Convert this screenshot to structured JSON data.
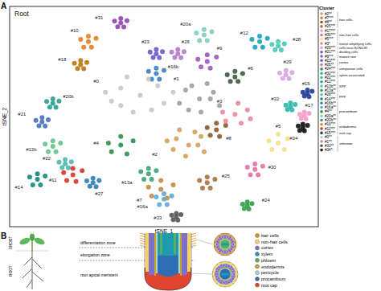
{
  "panel_labels": [
    "A",
    "B"
  ],
  "chart_data": {
    "type": "scatter",
    "title": "Root",
    "x_label": "tSNE_1",
    "y_label": "tSNE_2",
    "xlim": [
      0,
      100
    ],
    "ylim": [
      0,
      100
    ],
    "xticks": [],
    "yticks": [],
    "tick_labels": false,
    "legend": "right",
    "legend_title": "Cluster",
    "marker": "circle",
    "series": [
      {
        "name": "#2**",
        "group": "hair cells",
        "color": "#d4a15a",
        "x": [
          58,
          54,
          62,
          53,
          63,
          57,
          60,
          55,
          61,
          51
        ],
        "y": [
          37,
          40,
          41,
          35,
          34,
          32,
          43,
          44,
          37,
          39
        ]
      },
      {
        "name": "#7***",
        "group": "hair cells",
        "color": "#c48a3c",
        "x": [
          49,
          53,
          45,
          51,
          46,
          49
        ],
        "y": [
          17,
          19,
          18,
          13,
          14,
          21
        ]
      },
      {
        "name": "#8**",
        "group": "hair cells",
        "color": "#8b5a2b",
        "x": [
          67,
          70,
          64,
          68,
          65,
          67
        ],
        "y": [
          44,
          46,
          45,
          41,
          41.5,
          47
        ]
      },
      {
        "name": "#25***",
        "group": "hair cells",
        "color": "#a8733a",
        "x": [
          64,
          66.5,
          61.5,
          65,
          62.5,
          64
        ],
        "y": [
          20,
          21.5,
          21,
          17.5,
          17.5,
          22.5
        ]
      },
      {
        "name": "#17***",
        "group": "non-hair cells",
        "color": "#f29ec4",
        "x": [
          95.5,
          97,
          94,
          96,
          94.5,
          95.5
        ],
        "y": [
          50.5,
          51.5,
          51,
          49,
          49.2,
          52
        ]
      },
      {
        "name": "#30***",
        "group": "non-hair cells",
        "color": "#e76fa3",
        "x": [
          79.5,
          82,
          77,
          80.5,
          78,
          79.5
        ],
        "y": [
          26,
          27.5,
          27,
          23.5,
          23.5,
          28.5
        ]
      },
      {
        "name": "#5***",
        "group": "non-hair cells",
        "color": "#f7e08a",
        "x": [
          87,
          90,
          84,
          89,
          85,
          87
        ],
        "y": [
          38,
          40,
          39,
          35,
          35,
          42
        ]
      },
      {
        "name": "#3*",
        "group": "transit amplifying cells",
        "color": "#e8899a",
        "x": [
          73,
          77,
          69,
          75,
          70,
          74,
          78
        ],
        "y": [
          51,
          53,
          52,
          47,
          48,
          56,
          49
        ]
      },
      {
        "name": "#29***",
        "group": "cells near SCN/LRI",
        "color": "#d7a3e0",
        "x": [
          89.5,
          91.5,
          87.5,
          90.5,
          88.5,
          89.5
        ],
        "y": [
          69,
          70,
          69.8,
          67.2,
          67.3,
          71
        ]
      },
      {
        "name": "#21***",
        "group": "dividing cells",
        "color": "#4a6fc0",
        "x": [
          10.5,
          12.5,
          8.5,
          11.5,
          9.5,
          10.5
        ],
        "y": [
          47.5,
          48.5,
          48.3,
          45.7,
          45.8,
          49.5
        ]
      },
      {
        "name": "#9***",
        "group": "mature root",
        "color": "#9b59b6",
        "x": [
          64,
          67,
          61,
          65,
          62,
          64
        ],
        "y": [
          75,
          77,
          76,
          72,
          72.5,
          78
        ]
      },
      {
        "name": "#23***",
        "group": "cortex",
        "color": "#6a5acd",
        "x": [
          47.5,
          49.5,
          45.5,
          48.5,
          46.5,
          47.5
        ],
        "y": [
          78.5,
          79.5,
          79.3,
          76.7,
          76.8,
          80.5
        ]
      },
      {
        "name": "#26**",
        "group": "cortex",
        "color": "#b07cc6",
        "x": [
          54.5,
          56.5,
          52.5,
          55.5,
          53.5,
          54.5
        ],
        "y": [
          78.5,
          79.5,
          79.3,
          76.7,
          76.8,
          80.5
        ]
      },
      {
        "name": "#24***",
        "group": "companion cells",
        "color": "#2e9e44",
        "x": [
          77,
          78.5,
          75.5,
          77.5,
          76,
          77
        ],
        "y": [
          9.5,
          10.5,
          10.2,
          8,
          8.2,
          11.2
        ]
      },
      {
        "name": "#32***",
        "group": "xylem associated",
        "color": "#29b8a8",
        "x": [
          91,
          92.5,
          89.5,
          91.5,
          90,
          91
        ],
        "y": [
          54.5,
          55.5,
          55.2,
          53,
          53.2,
          56.2
        ]
      },
      {
        "name": "#22***",
        "group": "xylem associated",
        "color": "#4db6ac",
        "x": [
          18,
          20,
          16,
          19,
          17,
          18
        ],
        "y": [
          28.5,
          29.5,
          29.3,
          26.7,
          26.8,
          30.5
        ]
      },
      {
        "name": "#12***",
        "group": "XPP",
        "color": "#1aa3b8",
        "x": [
          81,
          83.5,
          78.5,
          82,
          79.5,
          81
        ],
        "y": [
          84,
          85.5,
          85,
          81.5,
          81.5,
          86.5
        ]
      },
      {
        "name": "#13b**",
        "group": "XPP",
        "color": "#5fc48a",
        "x": [
          14,
          16.5,
          11.5,
          15,
          12.5,
          14
        ],
        "y": [
          36.5,
          38,
          37.5,
          34,
          34,
          39
        ]
      },
      {
        "name": "#13a**",
        "group": "XPP",
        "color": "#3aa372",
        "x": [
          45,
          47.5,
          42.5,
          46,
          43.5,
          45
        ],
        "y": [
          24,
          25.5,
          25,
          21.5,
          21.5,
          26.5
        ]
      },
      {
        "name": "#28***",
        "group": "PPP",
        "color": "#48c9b0",
        "x": [
          87,
          89,
          85,
          88,
          86,
          87
        ],
        "y": [
          82,
          83,
          82.8,
          80.2,
          80.3,
          84
        ]
      },
      {
        "name": "#14***",
        "group": "PPP",
        "color": "#0f8a7a",
        "x": [
          9,
          11.5,
          6.5,
          10,
          7.5,
          9
        ],
        "y": [
          21.5,
          23,
          22.5,
          19,
          19,
          24
        ]
      },
      {
        "name": "#16b**",
        "group": "procambium",
        "color": "#3f7fbf",
        "x": [
          47.5,
          50,
          45,
          48.5,
          46,
          47.5
        ],
        "y": [
          69.5,
          71,
          70.5,
          67,
          67,
          72
        ]
      },
      {
        "name": "#16a**",
        "group": "procambium",
        "color": "#5aa9dd",
        "x": [
          50,
          52.5,
          47.5,
          51,
          48.5,
          50
        ],
        "y": [
          12.5,
          14,
          13.5,
          10,
          10,
          15
        ]
      },
      {
        "name": "#4**",
        "group": "procambium",
        "color": "#2f8f4e",
        "x": [
          36,
          40,
          32,
          38,
          33,
          36
        ],
        "y": [
          37,
          39,
          38,
          33,
          34,
          41
        ]
      },
      {
        "name": "#20a**",
        "group": "procambium",
        "color": "#7fcdbb",
        "x": [
          63,
          65.5,
          60.5,
          64,
          61.5,
          63
        ],
        "y": [
          87,
          88.5,
          88,
          84.5,
          84.5,
          89.5
        ]
      },
      {
        "name": "#20b**",
        "group": "procambium",
        "color": "#2a9d8f",
        "x": [
          14,
          16,
          12,
          15,
          13,
          14
        ],
        "y": [
          56,
          57,
          56.8,
          54.2,
          54.3,
          58
        ]
      },
      {
        "name": "#10***",
        "group": "endodermis",
        "color": "#e67e22",
        "x": [
          25.5,
          28,
          23,
          26.5,
          24,
          25.5
        ],
        "y": [
          84,
          85.5,
          85,
          81.5,
          81.5,
          86.5
        ]
      },
      {
        "name": "#11***",
        "group": "endodermis",
        "color": "#d9342b",
        "x": [
          20.5,
          23.5,
          17.5,
          21.5,
          18.5,
          20.5
        ],
        "y": [
          23.5,
          25.5,
          24.5,
          20.5,
          21,
          26.5
        ]
      },
      {
        "name": "#15***",
        "group": "root cap",
        "color": "#1f3a93",
        "x": [
          96.5,
          98,
          95,
          97,
          95.5,
          96.5
        ],
        "y": [
          60.5,
          61.5,
          61,
          59,
          59.3,
          62
        ]
      },
      {
        "name": "#0**",
        "group": "unknown",
        "color": "#c8c8c8",
        "x": [
          42.3,
          36,
          48,
          33,
          50,
          40,
          45,
          38,
          53,
          31,
          46,
          36
        ],
        "y": [
          59.7,
          63,
          64,
          57,
          56,
          52,
          67,
          68,
          61,
          61,
          53,
          55
        ]
      },
      {
        "name": "#1**",
        "group": "unknown",
        "color": "#9e9e9e",
        "x": [
          61.5,
          57,
          66,
          55,
          68,
          62,
          59,
          64,
          58,
          65
        ],
        "y": [
          58,
          62,
          61,
          56,
          55,
          52,
          64,
          65,
          53,
          58
        ]
      },
      {
        "name": "#33**",
        "group": "unknown",
        "color": "#555555",
        "x": [
          54,
          55.5,
          52.5,
          54.5,
          53,
          54
        ],
        "y": [
          4.5,
          5.5,
          5.2,
          3,
          3.2,
          6
        ]
      },
      {
        "name": "#34*",
        "group": "unknown",
        "color": "#111111",
        "x": [
          95,
          96.5,
          93.5,
          95.5,
          94,
          95
        ],
        "y": [
          45,
          46,
          45.7,
          43.5,
          43.7,
          46.5
        ]
      },
      {
        "color": "#3d5a40",
        "x": [
          73,
          75.5,
          70.5,
          74,
          71.5,
          73
        ],
        "y": [
          68,
          69.5,
          69,
          66,
          66,
          70.5
        ]
      },
      {
        "color": "#b9770e",
        "x": [
          23,
          25,
          21,
          24,
          22,
          23
        ],
        "y": [
          73.5,
          74.5,
          74.2,
          71.7,
          71.8,
          75.5
        ]
      },
      {
        "color": "#2c7fb8",
        "x": [
          27,
          29,
          25,
          28,
          26,
          27
        ],
        "y": [
          20,
          21,
          20.8,
          18.2,
          18.3,
          22
        ]
      },
      {
        "color": "#8e44ad",
        "x": [
          36,
          38,
          34,
          37,
          35,
          36
        ],
        "y": [
          92.5,
          93.5,
          93.3,
          90.7,
          90.8,
          94.5
        ]
      }
    ],
    "annotations": [
      {
        "text": "#0",
        "x": 28,
        "y": 66
      },
      {
        "text": "#1",
        "x": 54,
        "y": 67
      },
      {
        "text": "#2",
        "x": 47,
        "y": 33
      },
      {
        "text": "#3",
        "x": 68,
        "y": 57
      },
      {
        "text": "#4",
        "x": 28,
        "y": 38
      },
      {
        "text": "#5",
        "x": 87,
        "y": 45.5
      },
      {
        "text": "#6",
        "x": 78,
        "y": 72
      },
      {
        "text": "#7",
        "x": 42,
        "y": 12
      },
      {
        "text": "#8",
        "x": 71,
        "y": 40
      },
      {
        "text": "#9",
        "x": 68,
        "y": 81
      },
      {
        "text": "#10",
        "x": 21,
        "y": 89
      },
      {
        "text": "#11",
        "x": 14,
        "y": 21
      },
      {
        "text": "#12",
        "x": 76,
        "y": 88
      },
      {
        "text": "#13a",
        "x": 38,
        "y": 20
      },
      {
        "text": "#13b",
        "x": 7,
        "y": 35
      },
      {
        "text": "#14",
        "x": 3,
        "y": 18
      },
      {
        "text": "#15",
        "x": 96,
        "y": 65
      },
      {
        "text": "#16a",
        "x": 43,
        "y": 9
      },
      {
        "text": "#16b",
        "x": 53,
        "y": 72.5
      },
      {
        "text": "#17",
        "x": 97,
        "y": 55
      },
      {
        "text": "#18",
        "x": 17,
        "y": 76
      },
      {
        "text": "#20a",
        "x": 57,
        "y": 92
      },
      {
        "text": "#20b",
        "x": 19,
        "y": 59
      },
      {
        "text": "#21",
        "x": 4,
        "y": 51
      },
      {
        "text": "#22",
        "x": 12,
        "y": 31
      },
      {
        "text": "#23",
        "x": 44,
        "y": 84
      },
      {
        "text": "#24",
        "x": 83,
        "y": 12
      },
      {
        "text": "#25",
        "x": 70,
        "y": 23
      },
      {
        "text": "#26",
        "x": 57,
        "y": 84
      },
      {
        "text": "#27",
        "x": 29,
        "y": 15
      },
      {
        "text": "#28",
        "x": 93,
        "y": 85
      },
      {
        "text": "#29",
        "x": 90,
        "y": 75
      },
      {
        "text": "#30",
        "x": 85,
        "y": 27
      },
      {
        "text": "#31",
        "x": 29,
        "y": 95
      },
      {
        "text": "#32",
        "x": 86,
        "y": 58
      },
      {
        "text": "#33",
        "x": 48,
        "y": 4
      },
      {
        "text": "#34",
        "x": 92,
        "y": 40
      }
    ]
  },
  "diagram": {
    "plant_labels": [
      "SHOOT",
      "ROOT"
    ],
    "zones": [
      "differentiation zone",
      "elongation zone",
      "root apical meristem"
    ],
    "cell_types": [
      {
        "label": "hair cells",
        "color": "#e58e26"
      },
      {
        "label": "non-hair cells",
        "color": "#f4d35e"
      },
      {
        "label": "cortex",
        "color": "#7b6fd0"
      },
      {
        "label": "xylem",
        "color": "#1e9bb0"
      },
      {
        "label": "phloem",
        "color": "#58b05a"
      },
      {
        "label": "endodermis",
        "color": "#c9a227"
      },
      {
        "label": "pericycle",
        "color": "#a8d8c8"
      },
      {
        "label": "procambium",
        "color": "#2f6db5"
      },
      {
        "label": "root cap",
        "color": "#e0452f"
      }
    ]
  }
}
